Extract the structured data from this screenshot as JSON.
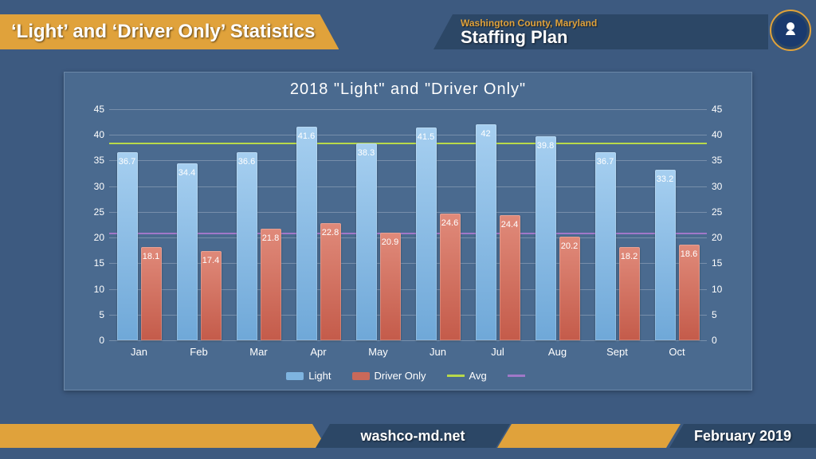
{
  "header": {
    "left_title": "‘Light’ and ‘Driver Only’ Statistics",
    "right_sub": "Washington County, Maryland",
    "right_main": "Staffing Plan"
  },
  "footer": {
    "url": "washco-md.net",
    "date": "February 2019"
  },
  "chart": {
    "type": "bar",
    "title": "2018 \"Light\" and \"Driver Only\"",
    "background_color": "#4a6a8f",
    "grid_color": "rgba(255,255,255,0.25)",
    "title_fontsize": 20,
    "label_fontsize": 12,
    "ylim": [
      0,
      45
    ],
    "ytick_step": 5,
    "categories": [
      "Jan",
      "Feb",
      "Mar",
      "Apr",
      "May",
      "Jun",
      "Jul",
      "Aug",
      "Sept",
      "Oct"
    ],
    "series": {
      "light": {
        "label": "Light",
        "color": "#7eb4e0",
        "values": [
          36.7,
          34.4,
          36.6,
          41.6,
          38.3,
          41.5,
          42,
          39.8,
          36.7,
          33.2
        ]
      },
      "driver_only": {
        "label": "Driver Only",
        "color": "#c9695a",
        "values": [
          18.1,
          17.4,
          21.8,
          22.8,
          20.9,
          24.6,
          24.4,
          20.2,
          18.2,
          18.6
        ]
      }
    },
    "avg_lines": {
      "light_avg": {
        "label": "Avg",
        "color": "#b8d94a",
        "value": 38.5
      },
      "driver_avg": {
        "label": "",
        "color": "#a078c8",
        "value": 21.0
      }
    },
    "legend_labels": {
      "light": "Light",
      "driver": "Driver Only",
      "avg1": "Avg",
      "avg2": ""
    }
  },
  "colors": {
    "page_bg": "#3d5a80",
    "gold": "#e0a23b",
    "navy": "#2c4766"
  }
}
